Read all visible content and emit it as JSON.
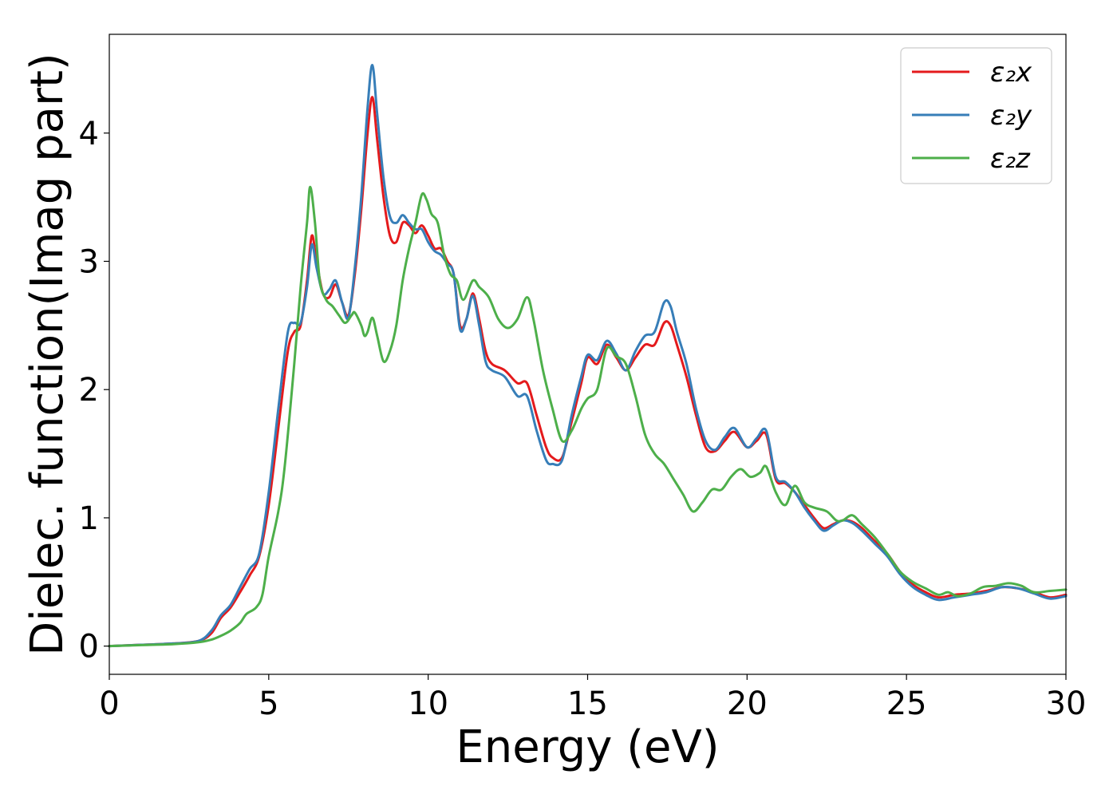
{
  "chart_data": {
    "type": "line",
    "xlabel": "Energy (eV)",
    "ylabel": "Dielec. function(Imag part)",
    "xlim": [
      0,
      30
    ],
    "ylim": [
      -0.22,
      4.77
    ],
    "xticks": [
      0,
      5,
      10,
      15,
      20,
      25,
      30
    ],
    "xtick_labels": [
      "0",
      "5",
      "10",
      "15",
      "20",
      "25",
      "30"
    ],
    "yticks": [
      0,
      1,
      2,
      3,
      4
    ],
    "ytick_labels": [
      "0",
      "1",
      "2",
      "3",
      "4"
    ],
    "grid": false,
    "legend_position": "top-right",
    "series": [
      {
        "name": "ε₂x",
        "color": "#e41a1c",
        "points": [
          [
            0,
            0
          ],
          [
            1,
            0.01
          ],
          [
            2,
            0.02
          ],
          [
            2.8,
            0.04
          ],
          [
            3.2,
            0.1
          ],
          [
            3.5,
            0.22
          ],
          [
            3.8,
            0.3
          ],
          [
            4.1,
            0.42
          ],
          [
            4.4,
            0.55
          ],
          [
            4.7,
            0.7
          ],
          [
            5.0,
            1.1
          ],
          [
            5.3,
            1.7
          ],
          [
            5.6,
            2.3
          ],
          [
            5.8,
            2.45
          ],
          [
            6.0,
            2.5
          ],
          [
            6.2,
            2.85
          ],
          [
            6.35,
            3.2
          ],
          [
            6.5,
            3.0
          ],
          [
            6.7,
            2.75
          ],
          [
            6.9,
            2.72
          ],
          [
            7.1,
            2.82
          ],
          [
            7.3,
            2.68
          ],
          [
            7.5,
            2.58
          ],
          [
            7.7,
            2.9
          ],
          [
            7.9,
            3.4
          ],
          [
            8.1,
            4.0
          ],
          [
            8.25,
            4.28
          ],
          [
            8.4,
            3.95
          ],
          [
            8.6,
            3.5
          ],
          [
            8.8,
            3.2
          ],
          [
            9.0,
            3.15
          ],
          [
            9.2,
            3.3
          ],
          [
            9.4,
            3.28
          ],
          [
            9.6,
            3.22
          ],
          [
            9.8,
            3.28
          ],
          [
            10.0,
            3.2
          ],
          [
            10.2,
            3.1
          ],
          [
            10.4,
            3.1
          ],
          [
            10.6,
            3.0
          ],
          [
            10.8,
            2.9
          ],
          [
            11.0,
            2.5
          ],
          [
            11.2,
            2.55
          ],
          [
            11.4,
            2.75
          ],
          [
            11.6,
            2.55
          ],
          [
            11.8,
            2.3
          ],
          [
            12.0,
            2.2
          ],
          [
            12.4,
            2.15
          ],
          [
            12.8,
            2.05
          ],
          [
            13.1,
            2.05
          ],
          [
            13.4,
            1.8
          ],
          [
            13.7,
            1.55
          ],
          [
            13.9,
            1.47
          ],
          [
            14.2,
            1.47
          ],
          [
            14.5,
            1.75
          ],
          [
            14.8,
            2.05
          ],
          [
            15.0,
            2.25
          ],
          [
            15.3,
            2.2
          ],
          [
            15.6,
            2.35
          ],
          [
            15.9,
            2.25
          ],
          [
            16.2,
            2.15
          ],
          [
            16.5,
            2.25
          ],
          [
            16.8,
            2.35
          ],
          [
            17.1,
            2.35
          ],
          [
            17.4,
            2.52
          ],
          [
            17.6,
            2.5
          ],
          [
            17.8,
            2.35
          ],
          [
            18.1,
            2.1
          ],
          [
            18.4,
            1.8
          ],
          [
            18.7,
            1.55
          ],
          [
            19.0,
            1.52
          ],
          [
            19.3,
            1.6
          ],
          [
            19.6,
            1.67
          ],
          [
            20.0,
            1.55
          ],
          [
            20.3,
            1.6
          ],
          [
            20.6,
            1.65
          ],
          [
            20.9,
            1.3
          ],
          [
            21.2,
            1.27
          ],
          [
            21.5,
            1.2
          ],
          [
            21.8,
            1.1
          ],
          [
            22.1,
            1.0
          ],
          [
            22.4,
            0.92
          ],
          [
            22.7,
            0.95
          ],
          [
            23.0,
            0.98
          ],
          [
            23.3,
            0.97
          ],
          [
            23.6,
            0.92
          ],
          [
            24.0,
            0.82
          ],
          [
            24.4,
            0.72
          ],
          [
            24.8,
            0.58
          ],
          [
            25.2,
            0.48
          ],
          [
            25.6,
            0.42
          ],
          [
            26.0,
            0.38
          ],
          [
            26.5,
            0.4
          ],
          [
            27.0,
            0.41
          ],
          [
            27.5,
            0.43
          ],
          [
            28.0,
            0.46
          ],
          [
            28.5,
            0.45
          ],
          [
            29.0,
            0.42
          ],
          [
            29.5,
            0.38
          ],
          [
            30.0,
            0.4
          ]
        ]
      },
      {
        "name": "ε₂y",
        "color": "#377eb8",
        "points": [
          [
            0,
            0
          ],
          [
            1,
            0.01
          ],
          [
            2,
            0.02
          ],
          [
            2.8,
            0.04
          ],
          [
            3.2,
            0.12
          ],
          [
            3.5,
            0.24
          ],
          [
            3.8,
            0.32
          ],
          [
            4.1,
            0.46
          ],
          [
            4.4,
            0.6
          ],
          [
            4.7,
            0.72
          ],
          [
            5.0,
            1.2
          ],
          [
            5.3,
            1.85
          ],
          [
            5.6,
            2.45
          ],
          [
            5.8,
            2.52
          ],
          [
            6.0,
            2.52
          ],
          [
            6.2,
            2.8
          ],
          [
            6.35,
            3.13
          ],
          [
            6.5,
            2.95
          ],
          [
            6.7,
            2.75
          ],
          [
            6.9,
            2.78
          ],
          [
            7.1,
            2.85
          ],
          [
            7.3,
            2.68
          ],
          [
            7.5,
            2.56
          ],
          [
            7.7,
            2.95
          ],
          [
            7.9,
            3.5
          ],
          [
            8.1,
            4.2
          ],
          [
            8.25,
            4.53
          ],
          [
            8.4,
            4.15
          ],
          [
            8.6,
            3.65
          ],
          [
            8.8,
            3.35
          ],
          [
            9.0,
            3.3
          ],
          [
            9.2,
            3.36
          ],
          [
            9.4,
            3.3
          ],
          [
            9.6,
            3.25
          ],
          [
            9.8,
            3.25
          ],
          [
            10.0,
            3.15
          ],
          [
            10.2,
            3.08
          ],
          [
            10.4,
            3.05
          ],
          [
            10.6,
            2.98
          ],
          [
            10.8,
            2.9
          ],
          [
            11.0,
            2.47
          ],
          [
            11.2,
            2.55
          ],
          [
            11.4,
            2.73
          ],
          [
            11.6,
            2.5
          ],
          [
            11.8,
            2.22
          ],
          [
            12.0,
            2.15
          ],
          [
            12.4,
            2.1
          ],
          [
            12.8,
            1.95
          ],
          [
            13.1,
            1.95
          ],
          [
            13.4,
            1.68
          ],
          [
            13.7,
            1.45
          ],
          [
            13.9,
            1.42
          ],
          [
            14.2,
            1.45
          ],
          [
            14.5,
            1.8
          ],
          [
            14.8,
            2.1
          ],
          [
            15.0,
            2.27
          ],
          [
            15.3,
            2.23
          ],
          [
            15.6,
            2.38
          ],
          [
            15.9,
            2.28
          ],
          [
            16.2,
            2.15
          ],
          [
            16.5,
            2.3
          ],
          [
            16.8,
            2.42
          ],
          [
            17.1,
            2.45
          ],
          [
            17.4,
            2.68
          ],
          [
            17.6,
            2.65
          ],
          [
            17.8,
            2.45
          ],
          [
            18.1,
            2.2
          ],
          [
            18.4,
            1.85
          ],
          [
            18.7,
            1.6
          ],
          [
            19.0,
            1.53
          ],
          [
            19.3,
            1.63
          ],
          [
            19.6,
            1.7
          ],
          [
            20.0,
            1.55
          ],
          [
            20.3,
            1.62
          ],
          [
            20.6,
            1.68
          ],
          [
            20.9,
            1.32
          ],
          [
            21.2,
            1.28
          ],
          [
            21.5,
            1.2
          ],
          [
            21.8,
            1.08
          ],
          [
            22.1,
            0.98
          ],
          [
            22.4,
            0.9
          ],
          [
            22.7,
            0.94
          ],
          [
            23.0,
            0.98
          ],
          [
            23.3,
            0.96
          ],
          [
            23.6,
            0.9
          ],
          [
            24.0,
            0.8
          ],
          [
            24.4,
            0.7
          ],
          [
            24.8,
            0.56
          ],
          [
            25.2,
            0.46
          ],
          [
            25.6,
            0.4
          ],
          [
            26.0,
            0.36
          ],
          [
            26.5,
            0.38
          ],
          [
            27.0,
            0.4
          ],
          [
            27.5,
            0.42
          ],
          [
            28.0,
            0.46
          ],
          [
            28.5,
            0.45
          ],
          [
            29.0,
            0.41
          ],
          [
            29.5,
            0.37
          ],
          [
            30.0,
            0.39
          ]
        ]
      },
      {
        "name": "ε₂z",
        "color": "#4daf4a",
        "points": [
          [
            0,
            0
          ],
          [
            1,
            0.008
          ],
          [
            2,
            0.015
          ],
          [
            2.8,
            0.03
          ],
          [
            3.2,
            0.05
          ],
          [
            3.5,
            0.08
          ],
          [
            3.8,
            0.12
          ],
          [
            4.1,
            0.18
          ],
          [
            4.3,
            0.25
          ],
          [
            4.6,
            0.3
          ],
          [
            4.8,
            0.4
          ],
          [
            5.0,
            0.7
          ],
          [
            5.3,
            1.05
          ],
          [
            5.5,
            1.4
          ],
          [
            5.8,
            2.2
          ],
          [
            6.0,
            2.8
          ],
          [
            6.2,
            3.3
          ],
          [
            6.3,
            3.58
          ],
          [
            6.45,
            3.3
          ],
          [
            6.6,
            2.85
          ],
          [
            6.8,
            2.7
          ],
          [
            7.0,
            2.65
          ],
          [
            7.2,
            2.58
          ],
          [
            7.4,
            2.52
          ],
          [
            7.6,
            2.58
          ],
          [
            7.7,
            2.6
          ],
          [
            7.9,
            2.5
          ],
          [
            8.0,
            2.42
          ],
          [
            8.1,
            2.45
          ],
          [
            8.25,
            2.56
          ],
          [
            8.4,
            2.42
          ],
          [
            8.6,
            2.22
          ],
          [
            8.8,
            2.3
          ],
          [
            9.0,
            2.5
          ],
          [
            9.2,
            2.85
          ],
          [
            9.4,
            3.1
          ],
          [
            9.6,
            3.3
          ],
          [
            9.8,
            3.52
          ],
          [
            9.95,
            3.48
          ],
          [
            10.1,
            3.37
          ],
          [
            10.3,
            3.3
          ],
          [
            10.5,
            3.05
          ],
          [
            10.7,
            2.9
          ],
          [
            10.9,
            2.85
          ],
          [
            11.1,
            2.7
          ],
          [
            11.4,
            2.85
          ],
          [
            11.6,
            2.8
          ],
          [
            11.9,
            2.72
          ],
          [
            12.2,
            2.55
          ],
          [
            12.5,
            2.48
          ],
          [
            12.8,
            2.55
          ],
          [
            13.1,
            2.72
          ],
          [
            13.3,
            2.55
          ],
          [
            13.6,
            2.15
          ],
          [
            13.9,
            1.85
          ],
          [
            14.2,
            1.6
          ],
          [
            14.5,
            1.68
          ],
          [
            14.8,
            1.85
          ],
          [
            15.0,
            1.93
          ],
          [
            15.3,
            2.0
          ],
          [
            15.6,
            2.32
          ],
          [
            15.9,
            2.26
          ],
          [
            16.2,
            2.2
          ],
          [
            16.5,
            1.95
          ],
          [
            16.8,
            1.65
          ],
          [
            17.1,
            1.5
          ],
          [
            17.4,
            1.42
          ],
          [
            17.7,
            1.3
          ],
          [
            18.0,
            1.18
          ],
          [
            18.3,
            1.05
          ],
          [
            18.6,
            1.12
          ],
          [
            18.9,
            1.22
          ],
          [
            19.2,
            1.22
          ],
          [
            19.5,
            1.32
          ],
          [
            19.8,
            1.38
          ],
          [
            20.1,
            1.32
          ],
          [
            20.4,
            1.35
          ],
          [
            20.6,
            1.4
          ],
          [
            20.9,
            1.2
          ],
          [
            21.2,
            1.1
          ],
          [
            21.5,
            1.25
          ],
          [
            21.8,
            1.12
          ],
          [
            22.1,
            1.08
          ],
          [
            22.5,
            1.05
          ],
          [
            22.8,
            0.98
          ],
          [
            23.0,
            0.98
          ],
          [
            23.3,
            1.02
          ],
          [
            23.6,
            0.95
          ],
          [
            24.0,
            0.85
          ],
          [
            24.4,
            0.72
          ],
          [
            24.8,
            0.58
          ],
          [
            25.2,
            0.5
          ],
          [
            25.6,
            0.45
          ],
          [
            26.0,
            0.4
          ],
          [
            26.3,
            0.42
          ],
          [
            26.6,
            0.39
          ],
          [
            27.0,
            0.41
          ],
          [
            27.4,
            0.46
          ],
          [
            27.8,
            0.47
          ],
          [
            28.2,
            0.49
          ],
          [
            28.6,
            0.47
          ],
          [
            29.0,
            0.42
          ],
          [
            29.5,
            0.43
          ],
          [
            30.0,
            0.44
          ]
        ]
      }
    ]
  }
}
